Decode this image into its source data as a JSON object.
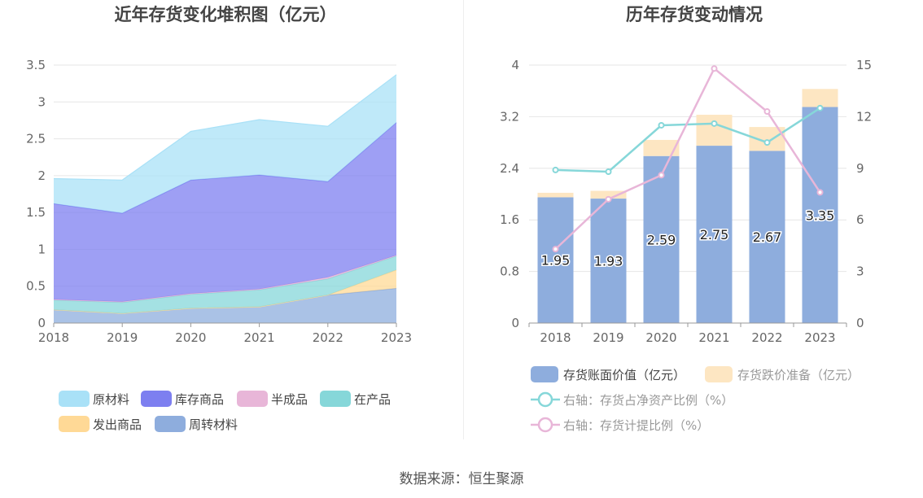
{
  "footer": {
    "source": "数据来源：恒生聚源"
  },
  "colors": {
    "raw_materials": "#a9e1f7",
    "inventory_goods": "#7d7ff0",
    "semi_finished": "#e8b6d8",
    "wip": "#86d7d9",
    "shipped_goods": "#ffd996",
    "turnover_materials": "#8eaddd",
    "book_value": "#8eaddd",
    "impairment": "#fde6c2",
    "ratio_net_assets": "#86d7d9",
    "provision_ratio": "#e8b6d8"
  },
  "chart_data": [
    {
      "type": "area",
      "title": "近年存货变化堆积图（亿元）",
      "x": [
        "2018",
        "2019",
        "2020",
        "2021",
        "2022",
        "2023"
      ],
      "ylim": [
        0,
        3.5
      ],
      "yticks": [
        "0",
        "0.5",
        "1",
        "1.5",
        "2",
        "2.5",
        "3",
        "3.5"
      ],
      "stacked": true,
      "grid": true,
      "legend_position": "bottom",
      "series": [
        {
          "name": "周转材料",
          "color_key": "turnover_materials",
          "values": [
            0.18,
            0.13,
            0.2,
            0.22,
            0.38,
            0.47
          ]
        },
        {
          "name": "发出商品",
          "color_key": "shipped_goods",
          "values": [
            0.0,
            0.0,
            0.0,
            0.0,
            0.0,
            0.25
          ]
        },
        {
          "name": "在产品",
          "color_key": "wip",
          "values": [
            0.13,
            0.15,
            0.19,
            0.23,
            0.22,
            0.19
          ]
        },
        {
          "name": "半成品",
          "color_key": "semi_finished",
          "values": [
            0.01,
            0.01,
            0.01,
            0.01,
            0.02,
            0.01
          ]
        },
        {
          "name": "库存商品",
          "color_key": "inventory_goods",
          "values": [
            1.3,
            1.2,
            1.54,
            1.55,
            1.3,
            1.8
          ]
        },
        {
          "name": "原材料",
          "color_key": "raw_materials",
          "values": [
            0.34,
            0.45,
            0.66,
            0.75,
            0.75,
            0.65
          ]
        }
      ],
      "legend": [
        {
          "name": "原材料",
          "color_key": "raw_materials"
        },
        {
          "name": "库存商品",
          "color_key": "inventory_goods"
        },
        {
          "name": "半成品",
          "color_key": "semi_finished"
        },
        {
          "name": "在产品",
          "color_key": "wip"
        },
        {
          "name": "发出商品",
          "color_key": "shipped_goods"
        },
        {
          "name": "周转材料",
          "color_key": "turnover_materials"
        }
      ]
    },
    {
      "type": "bar",
      "title": "历年存货变动情况",
      "categories": [
        "2018",
        "2019",
        "2020",
        "2021",
        "2022",
        "2023"
      ],
      "ylim": [
        0,
        4
      ],
      "yticks": [
        "0",
        "0.8",
        "1.6",
        "2.4",
        "3.2",
        "4"
      ],
      "y2lim": [
        0,
        15
      ],
      "y2ticks": [
        "0",
        "3",
        "6",
        "9",
        "12",
        "15"
      ],
      "grid": true,
      "legend_position": "bottom",
      "bars": [
        {
          "name": "存货账面价值（亿元）",
          "color_key": "book_value",
          "values": [
            1.95,
            1.93,
            2.59,
            2.75,
            2.67,
            3.35
          ],
          "labels": [
            "1.95",
            "1.93",
            "2.59",
            "2.75",
            "2.67",
            "3.35"
          ]
        },
        {
          "name": "存货跌价准备（亿元）",
          "color_key": "impairment",
          "values": [
            0.07,
            0.12,
            0.25,
            0.48,
            0.37,
            0.28
          ]
        }
      ],
      "lines": [
        {
          "name": "右轴：存货占净资产比例（%）",
          "color_key": "ratio_net_assets",
          "values": [
            8.9,
            8.8,
            11.5,
            11.6,
            10.5,
            12.5
          ]
        },
        {
          "name": "右轴：存货计提比例（%）",
          "color_key": "provision_ratio",
          "values": [
            4.3,
            7.2,
            8.6,
            14.8,
            12.3,
            7.6
          ]
        }
      ]
    }
  ]
}
